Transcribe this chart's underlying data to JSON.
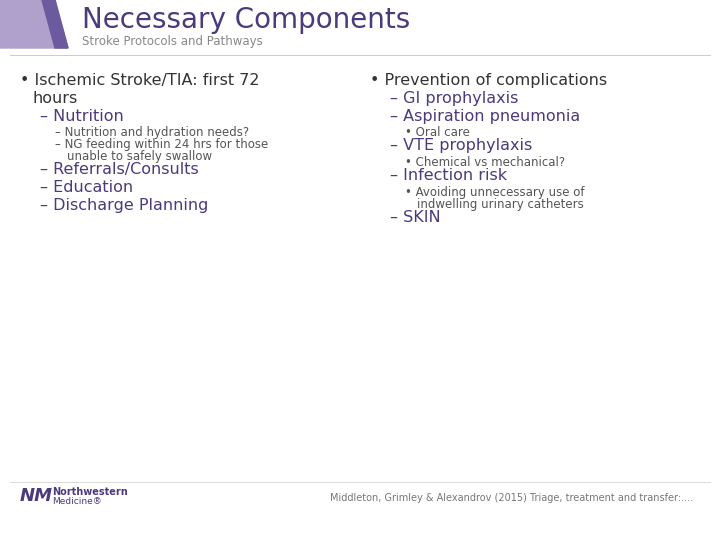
{
  "title": "Necessary Components",
  "subtitle": "Stroke Protocols and Pathways",
  "title_color": "#4b3a7c",
  "subtitle_color": "#888888",
  "bg_color": "#ffffff",
  "header_box_color1": "#b0a0cc",
  "header_box_color2": "#6b5a9e",
  "left_col": [
    {
      "level": 0,
      "bullet": "•",
      "text": "Ischemic Stroke/TIA: first 72",
      "text2": "  hours",
      "size": 11.5,
      "color": "#333333"
    },
    {
      "level": 1,
      "bullet": "–",
      "text": "Nutrition",
      "text2": null,
      "size": 11.5,
      "color": "#4b3a7c"
    },
    {
      "level": 2,
      "bullet": "–",
      "text": "Nutrition and hydration needs?",
      "text2": null,
      "size": 8.5,
      "color": "#555555"
    },
    {
      "level": 2,
      "bullet": "–",
      "text": "NG feeding within 24 hrs for those",
      "text2": "  unable to safely swallow",
      "size": 8.5,
      "color": "#555555"
    },
    {
      "level": 1,
      "bullet": "–",
      "text": "Referrals/Consults",
      "text2": null,
      "size": 11.5,
      "color": "#4b3a7c"
    },
    {
      "level": 1,
      "bullet": "–",
      "text": "Education",
      "text2": null,
      "size": 11.5,
      "color": "#4b3a7c"
    },
    {
      "level": 1,
      "bullet": "–",
      "text": "Discharge Planning",
      "text2": null,
      "size": 11.5,
      "color": "#4b3a7c"
    }
  ],
  "right_col": [
    {
      "level": 0,
      "bullet": "•",
      "text": "Prevention of complications",
      "text2": null,
      "size": 11.5,
      "color": "#333333"
    },
    {
      "level": 1,
      "bullet": "–",
      "text": "GI prophylaxis",
      "text2": null,
      "size": 11.5,
      "color": "#4b3a7c"
    },
    {
      "level": 1,
      "bullet": "–",
      "text": "Aspiration pneumonia",
      "text2": null,
      "size": 11.5,
      "color": "#4b3a7c"
    },
    {
      "level": 2,
      "bullet": "•",
      "text": "Oral care",
      "text2": null,
      "size": 8.5,
      "color": "#555555"
    },
    {
      "level": 1,
      "bullet": "–",
      "text": "VTE prophylaxis",
      "text2": null,
      "size": 11.5,
      "color": "#4b3a7c"
    },
    {
      "level": 2,
      "bullet": "•",
      "text": "Chemical vs mechanical?",
      "text2": null,
      "size": 8.5,
      "color": "#555555"
    },
    {
      "level": 1,
      "bullet": "–",
      "text": "Infection risk",
      "text2": null,
      "size": 11.5,
      "color": "#4b3a7c"
    },
    {
      "level": 2,
      "bullet": "•",
      "text": "Avoiding unnecessary use of",
      "text2": "  indwelling urinary catheters",
      "size": 8.5,
      "color": "#555555"
    },
    {
      "level": 1,
      "bullet": "–",
      "text": "SKIN",
      "text2": null,
      "size": 11.5,
      "color": "#4b3a7c"
    }
  ],
  "footer_right": "Middleton, Grimley & Alexandrov (2015) Triage, treatment and transfer:....",
  "footer_color": "#777777",
  "footer_size": 7,
  "nm_color": "#4b3a7c",
  "title_fontsize": 20,
  "subtitle_fontsize": 8.5
}
